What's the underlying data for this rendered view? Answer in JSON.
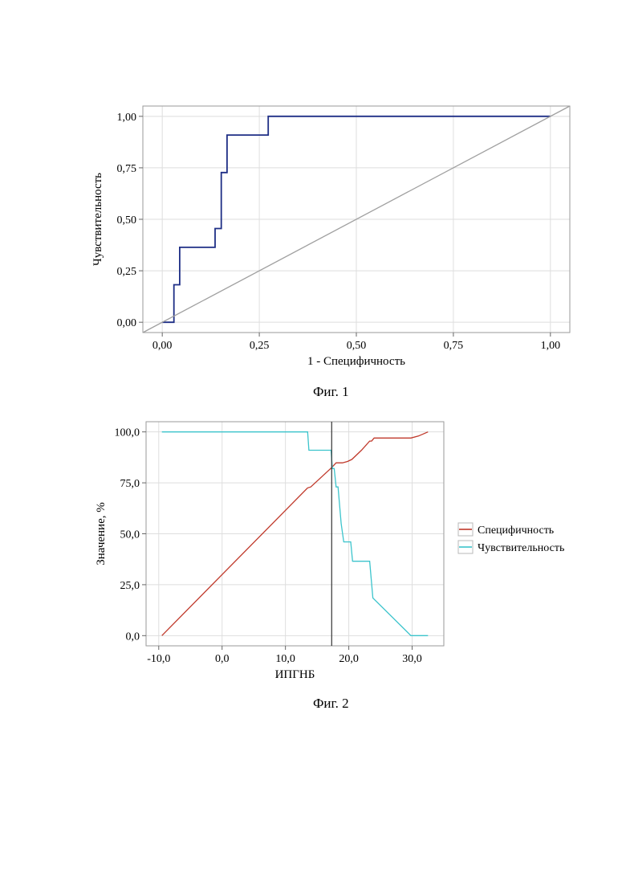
{
  "chart_data": [
    {
      "type": "line",
      "caption": "Фиг. 1",
      "xlabel": "1 - Специфичность",
      "ylabel": "Чувствительность",
      "xlim": [
        -0.05,
        1.05
      ],
      "ylim": [
        -0.05,
        1.05
      ],
      "grid": true,
      "xticks": [
        0,
        0.25,
        0.5,
        0.75,
        1
      ],
      "xtick_labels": [
        "0,00",
        "0,25",
        "0,50",
        "0,75",
        "1,00"
      ],
      "yticks": [
        0,
        0.25,
        0.5,
        0.75,
        1
      ],
      "ytick_labels": [
        "0,00",
        "0,25",
        "0,50",
        "0,75",
        "1,00"
      ],
      "series": [
        {
          "color": "#1f2f86",
          "x": [
            0,
            0.03,
            0.03,
            0.045,
            0.045,
            0.136,
            0.136,
            0.152,
            0.152,
            0.167,
            0.167,
            0.273,
            0.273,
            1.0
          ],
          "y": [
            0,
            0,
            0.182,
            0.182,
            0.364,
            0.364,
            0.455,
            0.455,
            0.727,
            0.727,
            0.909,
            0.909,
            1.0,
            1.0
          ]
        },
        {
          "color": "#a0a0a0",
          "x": [
            -0.05,
            1.05
          ],
          "y": [
            -0.05,
            1.05
          ]
        }
      ]
    },
    {
      "type": "line",
      "caption": "Фиг. 2",
      "xlabel": "ИПГНБ",
      "ylabel": "Значение, %",
      "xlim": [
        -12,
        35
      ],
      "ylim": [
        -5,
        105
      ],
      "grid": true,
      "legend": "right",
      "xticks": [
        -10,
        0,
        10,
        20,
        30
      ],
      "xtick_labels": [
        "-10,0",
        "0,0",
        "10,0",
        "20,0",
        "30,0"
      ],
      "yticks": [
        0,
        25,
        50,
        75,
        100
      ],
      "ytick_labels": [
        "0,0",
        "25,0",
        "50,0",
        "75,0",
        "100,0"
      ],
      "vline_x": 17.3,
      "series": [
        {
          "name": "Специфичность",
          "color": "#c0392b",
          "x": [
            -9.5,
            13.5,
            14.0,
            17.3,
            18.0,
            19.0,
            19.8,
            20.5,
            22.0,
            23.3,
            23.6,
            24.0,
            29.8,
            31.0,
            32.5
          ],
          "y": [
            0,
            72.5,
            73.0,
            82.5,
            84.8,
            84.8,
            85.5,
            86.5,
            91.0,
            95.5,
            95.5,
            97.0,
            97.0,
            98.0,
            100
          ]
        },
        {
          "name": "Чувствительность",
          "color": "#3cc4cc",
          "x": [
            -9.5,
            13.5,
            13.7,
            17.2,
            17.4,
            17.7,
            18.0,
            18.3,
            18.8,
            19.2,
            20.3,
            20.6,
            23.3,
            23.8,
            29.8,
            32.5
          ],
          "y": [
            100,
            100,
            91,
            91,
            82,
            82,
            73,
            73,
            55,
            46,
            46,
            36.5,
            36.5,
            18.5,
            0,
            0
          ]
        }
      ]
    }
  ]
}
